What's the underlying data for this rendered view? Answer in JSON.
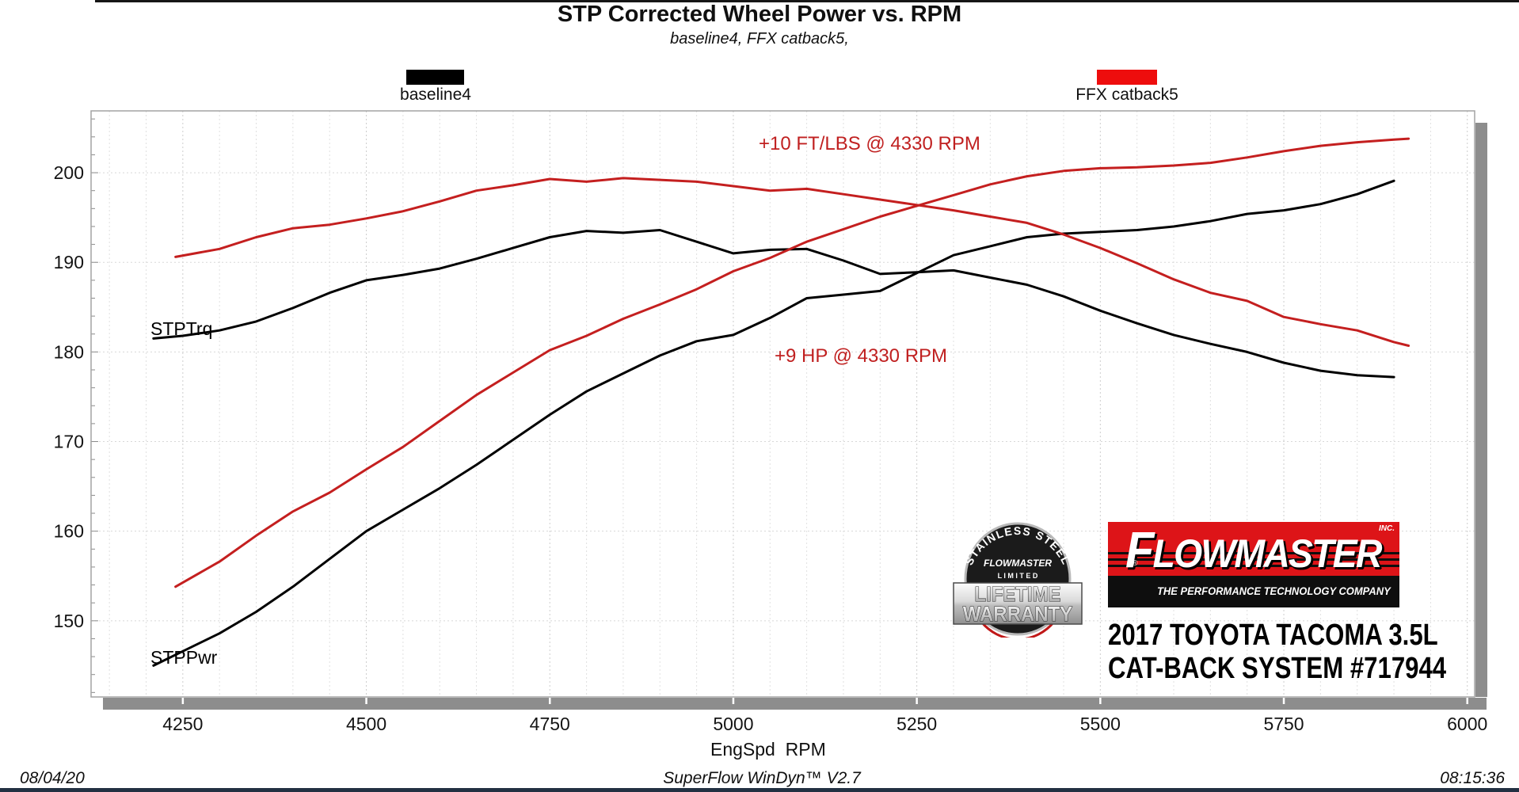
{
  "header": {
    "title": "STP Corrected Wheel Power vs. RPM",
    "subtitle": "baseline4, FFX catback5,"
  },
  "legend": [
    {
      "label": "baseline4",
      "color": "#000000"
    },
    {
      "label": "FFX catback5",
      "color": "#ee0d0d"
    }
  ],
  "annotations": [
    {
      "text": "+10 FT/LBS @ 4330 RPM",
      "color": "#c02020"
    },
    {
      "text": "+9 HP @ 4330 RPM",
      "color": "#c02020"
    }
  ],
  "curve_labels": [
    {
      "text": "STPTrq"
    },
    {
      "text": "STPPwr"
    }
  ],
  "branding": {
    "badge": {
      "arc_text": "STAINLESS STEEL",
      "brand": "FLOWMASTER",
      "limited": "L I M I T E D",
      "line1": "LIFETIME",
      "line2": "WARRANTY"
    },
    "logo": {
      "brand": "FLOWMASTER",
      "inc": "INC.",
      "registered": "®",
      "tagline": "THE PERFORMANCE TECHNOLOGY COMPANY",
      "red": "#dd1418"
    },
    "vehicle_line1": "2017 TOYOTA TACOMA 3.5L",
    "vehicle_line2": "CAT-BACK SYSTEM #717944"
  },
  "footer": {
    "date": "08/04/20",
    "software": "SuperFlow WinDyn™ V2.7",
    "time": "08:15:36"
  },
  "chart_data": {
    "type": "line",
    "title": "STP Corrected Wheel Power vs. RPM",
    "subtitle": "baseline4, FFX catback5,",
    "xlabel": "EngSpd  RPM",
    "ylabel": "",
    "xlim": [
      4125,
      6010
    ],
    "ylim": [
      141.5,
      206.9
    ],
    "x_ticks": [
      4250,
      4500,
      4750,
      5000,
      5250,
      5500,
      5750,
      6000
    ],
    "y_ticks": [
      150,
      160,
      170,
      180,
      190,
      200
    ],
    "x_minor_step": 50,
    "y_minor_step": 2,
    "grid": "dashed light gray, vertical every 50 RPM, horizontal every 10",
    "legend_position": "top",
    "series": [
      {
        "id": "baseline4-torque",
        "name": "baseline4 STPTrq (ft-lbs)",
        "color": "#000000",
        "x": [
          4210,
          4250,
          4300,
          4350,
          4400,
          4450,
          4500,
          4550,
          4600,
          4650,
          4700,
          4750,
          4800,
          4850,
          4900,
          4950,
          5000,
          5050,
          5100,
          5150,
          5200,
          5250,
          5300,
          5350,
          5400,
          5450,
          5500,
          5550,
          5600,
          5650,
          5700,
          5750,
          5800,
          5850,
          5900
        ],
        "y": [
          181.5,
          181.8,
          182.4,
          183.4,
          184.9,
          186.6,
          188.0,
          188.6,
          189.3,
          190.4,
          191.6,
          192.8,
          193.5,
          193.3,
          193.6,
          192.3,
          191.0,
          191.4,
          191.5,
          190.2,
          188.7,
          188.9,
          189.1,
          188.3,
          187.5,
          186.2,
          184.6,
          183.2,
          181.9,
          180.9,
          180.0,
          178.8,
          177.9,
          177.4,
          177.2
        ]
      },
      {
        "id": "baseline4-power",
        "name": "baseline4 STPPwr (hp)",
        "color": "#000000",
        "x": [
          4210,
          4250,
          4300,
          4350,
          4400,
          4450,
          4500,
          4550,
          4600,
          4650,
          4700,
          4750,
          4800,
          4850,
          4900,
          4950,
          5000,
          5050,
          5100,
          5150,
          5200,
          5250,
          5300,
          5350,
          5400,
          5450,
          5500,
          5550,
          5600,
          5650,
          5700,
          5750,
          5800,
          5850,
          5900
        ],
        "y": [
          145.0,
          146.6,
          148.6,
          151.0,
          153.8,
          156.9,
          160.0,
          162.4,
          164.8,
          167.4,
          170.2,
          173.0,
          175.6,
          177.6,
          179.6,
          181.2,
          181.9,
          183.8,
          186.0,
          186.4,
          186.8,
          188.8,
          190.8,
          191.8,
          192.8,
          193.2,
          193.4,
          193.6,
          194.0,
          194.6,
          195.4,
          195.8,
          196.5,
          197.6,
          199.1
        ]
      },
      {
        "id": "ffx-catback5-torque",
        "name": "FFX catback5 STPTrq (ft-lbs)",
        "color": "#c41f1f",
        "x": [
          4240,
          4300,
          4350,
          4400,
          4450,
          4500,
          4550,
          4600,
          4650,
          4700,
          4750,
          4800,
          4850,
          4900,
          4950,
          5000,
          5050,
          5100,
          5150,
          5200,
          5250,
          5300,
          5350,
          5400,
          5450,
          5500,
          5550,
          5600,
          5650,
          5700,
          5750,
          5800,
          5850,
          5900,
          5920
        ],
        "y": [
          190.6,
          191.5,
          192.8,
          193.8,
          194.2,
          194.9,
          195.7,
          196.8,
          198.0,
          198.6,
          199.3,
          199.0,
          199.4,
          199.2,
          199.0,
          198.5,
          198.0,
          198.2,
          197.6,
          197.0,
          196.4,
          195.8,
          195.1,
          194.4,
          193.1,
          191.6,
          189.9,
          188.1,
          186.6,
          185.7,
          183.9,
          183.1,
          182.4,
          181.1,
          180.7
        ]
      },
      {
        "id": "ffx-catback5-power",
        "name": "FFX catback5 STPPwr (hp)",
        "color": "#c41f1f",
        "x": [
          4240,
          4300,
          4350,
          4400,
          4450,
          4500,
          4550,
          4600,
          4650,
          4700,
          4750,
          4800,
          4850,
          4900,
          4950,
          5000,
          5050,
          5100,
          5150,
          5200,
          5250,
          5300,
          5350,
          5400,
          5450,
          5500,
          5550,
          5600,
          5650,
          5700,
          5750,
          5800,
          5850,
          5900,
          5920
        ],
        "y": [
          153.8,
          156.6,
          159.5,
          162.2,
          164.3,
          166.9,
          169.4,
          172.3,
          175.2,
          177.7,
          180.2,
          181.8,
          183.7,
          185.3,
          187.0,
          189.0,
          190.5,
          192.3,
          193.7,
          195.1,
          196.3,
          197.5,
          198.7,
          199.6,
          200.2,
          200.5,
          200.6,
          200.8,
          201.1,
          201.7,
          202.4,
          203.0,
          203.4,
          203.7,
          203.8
        ]
      }
    ],
    "annotations": [
      {
        "text": "+10 FT/LBS @ 4330 RPM",
        "color": "#c02020"
      },
      {
        "text": "+9 HP @ 4330 RPM",
        "color": "#c02020"
      }
    ]
  }
}
